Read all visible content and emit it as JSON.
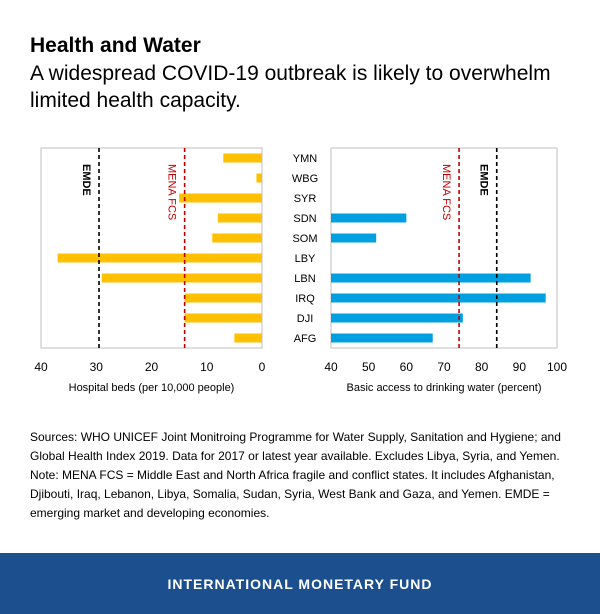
{
  "header": {
    "title": "Health and Water",
    "subtitle": "A widespread COVID-19 outbreak is likely to overwhelm limited health capacity."
  },
  "chart_data": [
    {
      "type": "bar",
      "orientation": "horizontal",
      "reversed_x": true,
      "categories": [
        "YMN",
        "WBG",
        "SYR",
        "SDN",
        "SOM",
        "LBY",
        "LBN",
        "IRQ",
        "DJI",
        "AFG"
      ],
      "values": [
        7,
        1,
        15,
        8,
        9,
        37,
        29,
        14,
        14,
        5
      ],
      "xlabel": "Hospital beds (per 10,000 people)",
      "xlim": [
        40,
        0
      ],
      "xticks": [
        40,
        30,
        20,
        10,
        0
      ],
      "color": "#ffc000",
      "reference_lines": [
        {
          "label": "EMDE",
          "value": 29.5,
          "color": "#000000"
        },
        {
          "label": "MENA FCS",
          "value": 14,
          "color": "#c00000"
        }
      ]
    },
    {
      "type": "bar",
      "orientation": "horizontal",
      "categories": [
        "YMN",
        "WBG",
        "SYR",
        "SDN",
        "SOM",
        "LBY",
        "LBN",
        "IRQ",
        "DJI",
        "AFG"
      ],
      "values": [
        null,
        null,
        null,
        60,
        52,
        null,
        93,
        97,
        75,
        67
      ],
      "xlabel": "Basic access to drinking water (percent)",
      "xlim": [
        40,
        100
      ],
      "xticks": [
        40,
        50,
        60,
        70,
        80,
        90,
        100
      ],
      "color": "#00a0e0",
      "reference_lines": [
        {
          "label": "MENA FCS",
          "value": 74,
          "color": "#c00000"
        },
        {
          "label": "EMDE",
          "value": 84,
          "color": "#000000"
        }
      ]
    }
  ],
  "notes": "Sources: WHO UNICEF Joint Monitroing Programme for Water Supply, Sanitation and Hygiene; and Global Health Index 2019. Data for 2017 or latest year available. Excludes Libya, Syria, and Yemen. Note: MENA FCS = Middle East and North Africa fragile and conflict states. It includes Afghanistan, Djibouti, Iraq, Lebanon, Libya, Somalia, Sudan, Syria, West Bank and Gaza, and Yemen.  EMDE = emerging market and developing economies.",
  "footer": {
    "org_name": "INTERNATIONAL MONETARY FUND"
  }
}
